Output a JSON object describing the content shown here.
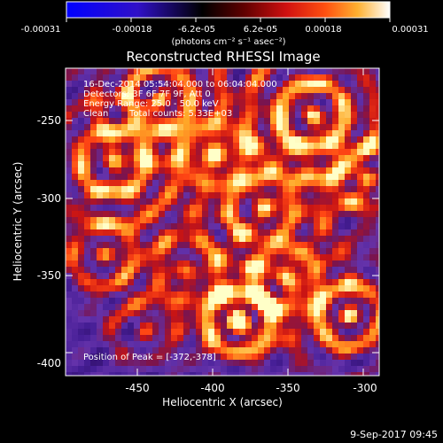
{
  "colorbar": {
    "tick_labels": [
      "-0.00031",
      "-0.00018",
      "-6.2e-05",
      "6.2e-05",
      "0.00018",
      "0.00031"
    ],
    "units_text": "(photons cm⁻² s⁻¹ asec⁻²)",
    "colors": [
      "#0000ff",
      "#2a10c0",
      "#000000",
      "#5a0000",
      "#c01010",
      "#ff4010",
      "#ffa020",
      "#ffff80",
      "#ffffff"
    ]
  },
  "plot": {
    "title": "Reconstructed RHESSI Image",
    "info": {
      "time_range": "16-Dec-2014 05:54:04.000 to 06:04:04.000",
      "detectors": "Detectors: 3F 6F 7F 9F, Att 0",
      "energy_range": "Energy Range: 25.0 - 50.0 keV",
      "method": "Clean",
      "total_counts": "Total counts: 5.33E+03"
    },
    "peak_text": "Position of Peak = [-372,-378]",
    "xlabel": "Heliocentric X (arcsec)",
    "ylabel": "Heliocentric Y (arcsec)",
    "x_ticks": [
      "-450",
      "-400",
      "-350",
      "-300"
    ],
    "y_ticks": [
      "-250",
      "-300",
      "-350",
      "-400"
    ]
  },
  "footer": {
    "timestamp": "9-Sep-2017 09:45"
  }
}
